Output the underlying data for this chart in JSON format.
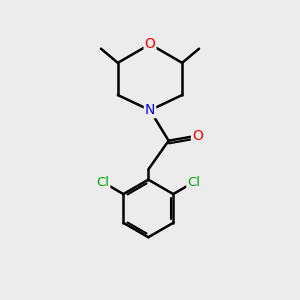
{
  "bg_color": "#ececec",
  "bond_color": "#000000",
  "atom_colors": {
    "O": "#ff0000",
    "N": "#0000ff",
    "Cl": "#00aa00",
    "C": "#000000"
  },
  "bond_width": 1.8,
  "font_size_atom": 10
}
